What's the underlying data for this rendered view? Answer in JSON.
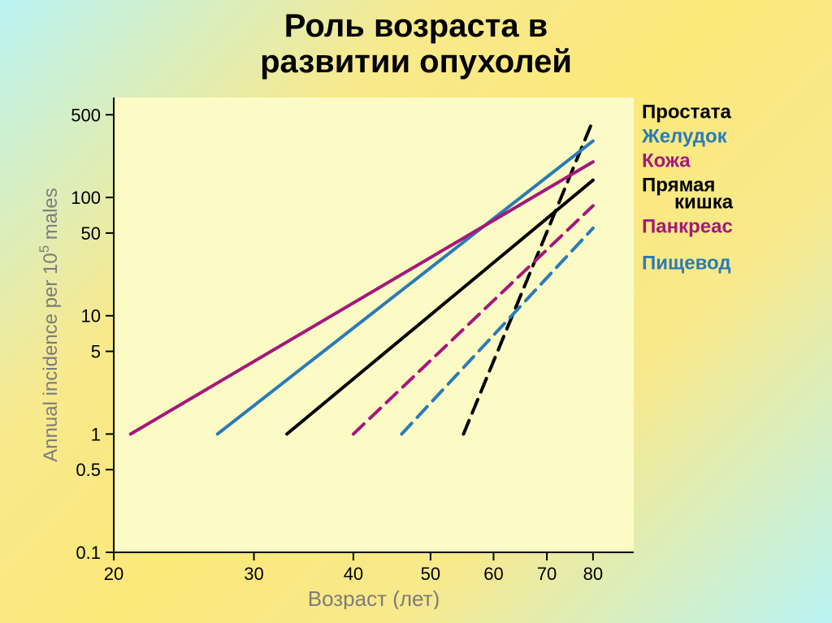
{
  "title_line1": "Роль возраста в",
  "title_line2": "развитии опухолей",
  "chart": {
    "type": "line",
    "x_axis": {
      "label": "Возраст (лет)",
      "ticks": [
        20,
        30,
        40,
        50,
        60,
        70,
        80
      ],
      "min": 20,
      "max": 90,
      "scale": "log"
    },
    "y_axis": {
      "label": "Annual incidence per 10⁵ males",
      "ticks": [
        0.1,
        0.5,
        1,
        5,
        10,
        50,
        100,
        500
      ],
      "min": 0.1,
      "max": 700,
      "scale": "log"
    },
    "plot_background": "#fdfbc5",
    "axis_color": "#000000",
    "tick_label_color": "#000000",
    "axis_label_color": "#7c7c7c",
    "axis_label_fontsize": 24,
    "tick_label_fontsize": 22,
    "line_width": 4,
    "dash_pattern": "18 10",
    "series": [
      {
        "name": "Простата",
        "color": "#000000",
        "style": "dashed",
        "label_color": "#000000",
        "points": [
          [
            55,
            1
          ],
          [
            80,
            450
          ]
        ]
      },
      {
        "name": "Желудок",
        "color": "#2a7bb6",
        "style": "solid",
        "label_color": "#2a7bb6",
        "points": [
          [
            27,
            1
          ],
          [
            80,
            300
          ]
        ]
      },
      {
        "name": "Кожа",
        "color": "#a3187a",
        "style": "solid",
        "label_color": "#a3187a",
        "points": [
          [
            21,
            1
          ],
          [
            80,
            200
          ]
        ]
      },
      {
        "name": "Прямая кишка",
        "color": "#000000",
        "style": "solid",
        "label_color": "#000000",
        "points": [
          [
            33,
            1
          ],
          [
            80,
            140
          ]
        ],
        "label2": "кишка",
        "label1": "Прямая"
      },
      {
        "name": "Панкреас",
        "color": "#a3187a",
        "style": "dashed",
        "label_color": "#a3187a",
        "points": [
          [
            40,
            1
          ],
          [
            80,
            85
          ]
        ]
      },
      {
        "name": "Пищевод",
        "color": "#2a7bb6",
        "style": "dashed",
        "label_color": "#2a7bb6",
        "points": [
          [
            46,
            1
          ],
          [
            80,
            55
          ]
        ]
      }
    ],
    "legend_labels": [
      {
        "text": "Простата",
        "color": "#000000",
        "y": 0
      },
      {
        "text": "Желудок",
        "color": "#2a7bb6",
        "y": 1
      },
      {
        "text": "Кожа",
        "color": "#a3187a",
        "y": 2
      },
      {
        "text": "Прямая",
        "color": "#000000",
        "y": 3
      },
      {
        "text": "кишка",
        "color": "#000000",
        "y": 3.7,
        "indent": true
      },
      {
        "text": "Панкреас",
        "color": "#a3187a",
        "y": 4.7
      },
      {
        "text": "Пищевод",
        "color": "#2a7bb6",
        "y": 6.2
      }
    ]
  }
}
